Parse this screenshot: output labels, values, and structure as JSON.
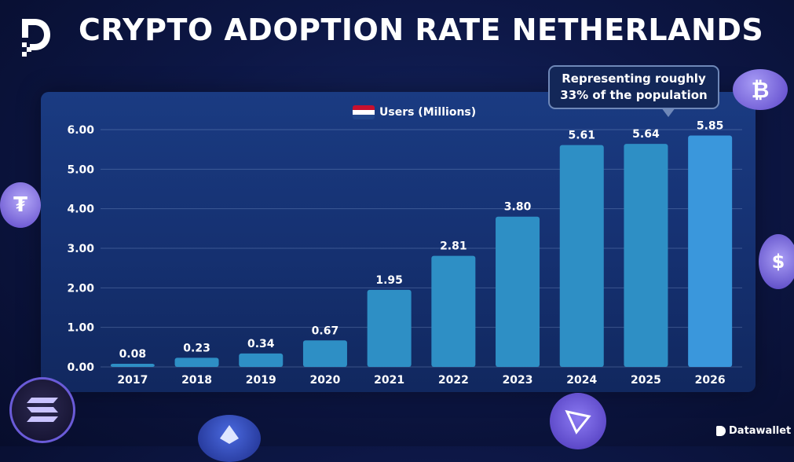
{
  "title": "CRYPTO ADOPTION RATE NETHERLANDS",
  "brand": "Datawallet",
  "callout": {
    "line1": "Representing roughly",
    "line2": "33% of the population"
  },
  "colors": {
    "bar": "#2e8fc5",
    "bar_highlight": "#3a97dc",
    "accent": "#7b6cf0",
    "flag_red": "#c8102e",
    "flag_white": "#ffffff",
    "flag_blue": "#21468b"
  },
  "chart_data": {
    "type": "bar",
    "legend": "Users (Millions)",
    "categories": [
      "2017",
      "2018",
      "2019",
      "2020",
      "2021",
      "2022",
      "2023",
      "2024",
      "2025",
      "2026"
    ],
    "values": [
      0.08,
      0.23,
      0.34,
      0.67,
      1.95,
      2.81,
      3.8,
      5.61,
      5.64,
      5.85
    ],
    "value_labels": [
      "0.08",
      "0.23",
      "0.34",
      "0.67",
      "1.95",
      "2.81",
      "3.80",
      "5.61",
      "5.64",
      "5.85"
    ],
    "y_ticks": [
      "0.00",
      "1.00",
      "2.00",
      "3.00",
      "4.00",
      "5.00",
      "6.00"
    ],
    "ylim": [
      0,
      6
    ],
    "grid": true,
    "legend_position": "top-center"
  }
}
